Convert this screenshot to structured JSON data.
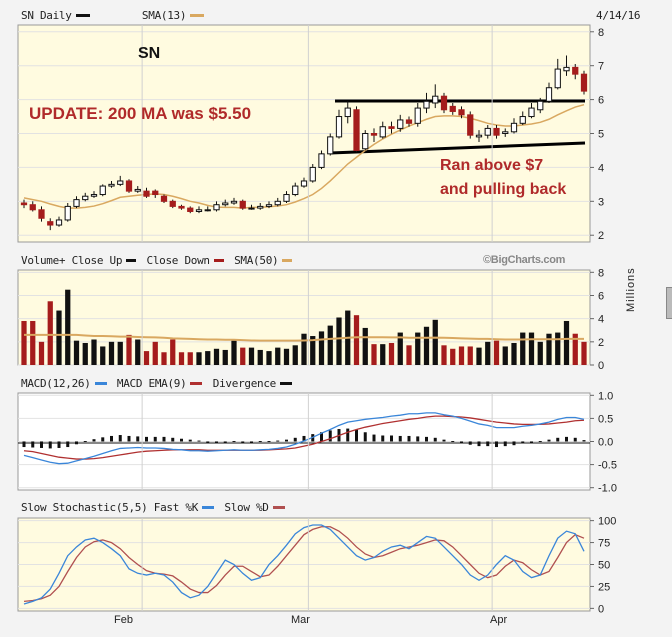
{
  "header": {
    "symbol_period": "SN Daily",
    "indicator": "SMA(13)",
    "date": "4/14/16"
  },
  "annotations": {
    "ticker": "SN",
    "update": "UPDATE: 200 MA was $5.50",
    "note_line1": "Ran above $7",
    "note_line2": "and pulling back"
  },
  "watermark": "©BigCharts.com",
  "colors": {
    "up": "#111111",
    "down": "#a51c1c",
    "sma": "#d9a860",
    "macd": "#3a86d9",
    "signal": "#b03030",
    "fast": "#3a86d9",
    "slow": "#b05050",
    "annotation": "#b02a2a"
  },
  "x_axis": {
    "labels": [
      "Feb",
      "Mar",
      "Apr"
    ]
  },
  "chart_data": [
    {
      "type": "candlestick",
      "title": "SN Daily",
      "series_name": "SMA(13)",
      "ylim": [
        2,
        8
      ],
      "yticks": [
        2,
        3,
        4,
        5,
        6,
        7,
        8
      ],
      "x": [
        "Jan 12",
        "Jan 13",
        "Jan 14",
        "Jan 15",
        "Jan 19",
        "Jan 20",
        "Jan 21",
        "Jan 22",
        "Jan 25",
        "Jan 26",
        "Jan 27",
        "Jan 28",
        "Jan 29",
        "Feb 1",
        "Feb 2",
        "Feb 3",
        "Feb 4",
        "Feb 5",
        "Feb 8",
        "Feb 9",
        "Feb 10",
        "Feb 11",
        "Feb 12",
        "Feb 16",
        "Feb 17",
        "Feb 18",
        "Feb 19",
        "Feb 22",
        "Feb 23",
        "Feb 24",
        "Feb 25",
        "Feb 26",
        "Feb 29",
        "Mar 1",
        "Mar 2",
        "Mar 3",
        "Mar 4",
        "Mar 7",
        "Mar 8",
        "Mar 9",
        "Mar 10",
        "Mar 11",
        "Mar 14",
        "Mar 15",
        "Mar 16",
        "Mar 17",
        "Mar 18",
        "Mar 21",
        "Mar 22",
        "Mar 23",
        "Mar 24",
        "Mar 28",
        "Mar 29",
        "Mar 30",
        "Mar 31",
        "Apr 1",
        "Apr 4",
        "Apr 5",
        "Apr 6",
        "Apr 7",
        "Apr 8",
        "Apr 11",
        "Apr 12",
        "Apr 13",
        "Apr 14"
      ],
      "open": [
        2.95,
        2.9,
        2.75,
        2.4,
        2.3,
        2.45,
        2.85,
        3.05,
        3.15,
        3.2,
        3.45,
        3.5,
        3.6,
        3.3,
        3.3,
        3.3,
        3.15,
        3.0,
        2.85,
        2.8,
        2.7,
        2.75,
        2.75,
        2.9,
        2.95,
        3.0,
        2.8,
        2.8,
        2.85,
        2.9,
        3.0,
        3.2,
        3.45,
        3.6,
        4.0,
        4.4,
        4.9,
        5.5,
        5.7,
        4.55,
        5.0,
        4.9,
        5.2,
        5.15,
        5.4,
        5.3,
        5.75,
        5.9,
        6.1,
        5.8,
        5.7,
        5.55,
        4.9,
        4.95,
        5.15,
        5.0,
        5.05,
        5.3,
        5.5,
        5.7,
        5.95,
        6.35,
        6.85,
        6.95,
        6.75
      ],
      "close": [
        2.9,
        2.75,
        2.5,
        2.3,
        2.45,
        2.85,
        3.05,
        3.15,
        3.2,
        3.45,
        3.5,
        3.6,
        3.3,
        3.35,
        3.15,
        3.2,
        3.0,
        2.85,
        2.8,
        2.7,
        2.75,
        2.75,
        2.9,
        2.95,
        3.0,
        2.8,
        2.8,
        2.85,
        2.9,
        3.0,
        3.2,
        3.45,
        3.6,
        4.0,
        4.4,
        4.9,
        5.5,
        5.75,
        4.5,
        5.0,
        4.95,
        5.2,
        5.15,
        5.4,
        5.3,
        5.75,
        5.95,
        6.1,
        5.7,
        5.65,
        5.55,
        4.95,
        4.95,
        5.15,
        4.95,
        5.05,
        5.3,
        5.5,
        5.75,
        5.95,
        6.35,
        6.9,
        6.95,
        6.75,
        6.25
      ],
      "high": [
        3.05,
        3.0,
        2.85,
        2.5,
        2.55,
        2.95,
        3.15,
        3.25,
        3.3,
        3.5,
        3.6,
        3.75,
        3.65,
        3.45,
        3.4,
        3.35,
        3.2,
        3.05,
        2.9,
        2.85,
        2.85,
        2.85,
        3.0,
        3.05,
        3.1,
        3.05,
        2.9,
        2.95,
        3.0,
        3.1,
        3.3,
        3.55,
        3.7,
        4.1,
        4.5,
        5.0,
        5.7,
        5.95,
        5.8,
        5.1,
        5.15,
        5.35,
        5.35,
        5.55,
        5.5,
        5.9,
        6.2,
        6.45,
        6.2,
        5.9,
        5.8,
        5.65,
        5.1,
        5.25,
        5.25,
        5.15,
        5.45,
        5.65,
        5.9,
        6.05,
        6.5,
        7.2,
        7.3,
        7.05,
        6.85
      ],
      "low": [
        2.8,
        2.7,
        2.4,
        2.15,
        2.25,
        2.4,
        2.8,
        3.0,
        3.1,
        3.15,
        3.4,
        3.45,
        3.25,
        3.25,
        3.1,
        3.1,
        2.95,
        2.8,
        2.75,
        2.65,
        2.65,
        2.7,
        2.7,
        2.85,
        2.9,
        2.75,
        2.75,
        2.75,
        2.8,
        2.85,
        2.95,
        3.15,
        3.4,
        3.55,
        3.95,
        4.35,
        4.85,
        5.3,
        4.45,
        4.5,
        4.75,
        4.85,
        5.0,
        5.05,
        5.2,
        5.2,
        5.6,
        5.75,
        5.6,
        5.55,
        5.45,
        4.85,
        4.75,
        4.85,
        4.85,
        4.9,
        5.0,
        5.25,
        5.45,
        5.6,
        5.9,
        6.3,
        6.7,
        6.6,
        6.15
      ],
      "sma13": [
        3.1,
        3.05,
        3.0,
        2.92,
        2.85,
        2.8,
        2.8,
        2.82,
        2.86,
        2.93,
        3.02,
        3.12,
        3.15,
        3.18,
        3.2,
        3.22,
        3.2,
        3.15,
        3.08,
        3.0,
        2.95,
        2.88,
        2.83,
        2.82,
        2.82,
        2.8,
        2.82,
        2.82,
        2.84,
        2.86,
        2.9,
        2.98,
        3.08,
        3.2,
        3.38,
        3.6,
        3.85,
        4.1,
        4.3,
        4.5,
        4.68,
        4.84,
        4.98,
        5.1,
        5.22,
        5.32,
        5.42,
        5.5,
        5.52,
        5.52,
        5.5,
        5.45,
        5.38,
        5.3,
        5.25,
        5.22,
        5.22,
        5.25,
        5.28,
        5.33,
        5.42,
        5.55,
        5.67,
        5.78,
        5.85
      ]
    },
    {
      "type": "bar",
      "title": "Volume+",
      "ylabel": "Millions",
      "legend": [
        "Close Up",
        "Close Down",
        "SMA(50)"
      ],
      "ylim": [
        0,
        8
      ],
      "yticks": [
        0,
        2,
        4,
        6,
        8
      ],
      "values": [
        3.8,
        3.8,
        2.0,
        5.5,
        4.7,
        6.5,
        2.1,
        1.9,
        2.2,
        1.6,
        2.0,
        2.0,
        2.6,
        2.2,
        1.2,
        2.0,
        1.1,
        2.2,
        1.1,
        1.1,
        1.1,
        1.2,
        1.4,
        1.3,
        2.1,
        1.5,
        1.5,
        1.3,
        1.2,
        1.5,
        1.4,
        1.7,
        2.7,
        2.5,
        2.9,
        3.4,
        4.1,
        4.7,
        4.3,
        3.2,
        1.8,
        1.8,
        1.9,
        2.8,
        1.7,
        2.8,
        3.3,
        3.9,
        1.7,
        1.4,
        1.6,
        1.6,
        1.5,
        2.0,
        2.1,
        1.6,
        1.9,
        2.8,
        2.8,
        2.0,
        2.7,
        2.8,
        3.8,
        2.7,
        2.0
      ],
      "sma50": [
        2.6,
        2.6,
        2.6,
        2.6,
        2.6,
        2.6,
        2.6,
        2.55,
        2.5,
        2.5,
        2.48,
        2.45,
        2.45,
        2.42,
        2.4,
        2.38,
        2.35,
        2.3,
        2.28,
        2.25,
        2.22,
        2.2,
        2.2,
        2.18,
        2.18,
        2.15,
        2.12,
        2.1,
        2.1,
        2.1,
        2.1,
        2.1,
        2.12,
        2.15,
        2.2,
        2.25,
        2.3,
        2.35,
        2.4,
        2.4,
        2.4,
        2.4,
        2.38,
        2.38,
        2.35,
        2.35,
        2.35,
        2.36,
        2.35,
        2.33,
        2.3,
        2.28,
        2.25,
        2.25,
        2.22,
        2.2,
        2.2,
        2.2,
        2.22,
        2.22,
        2.22,
        2.22,
        2.25,
        2.25,
        2.25
      ]
    },
    {
      "type": "line",
      "title": "MACD(12,26)",
      "legend": [
        "MACD EMA(9)",
        "Divergence"
      ],
      "ylim": [
        -1.0,
        1.0
      ],
      "yticks": [
        -1.0,
        -0.5,
        0.0,
        0.5,
        1.0
      ],
      "macd": [
        -0.3,
        -0.35,
        -0.4,
        -0.45,
        -0.48,
        -0.47,
        -0.42,
        -0.37,
        -0.32,
        -0.26,
        -0.2,
        -0.15,
        -0.14,
        -0.13,
        -0.14,
        -0.14,
        -0.15,
        -0.17,
        -0.18,
        -0.2,
        -0.2,
        -0.21,
        -0.2,
        -0.19,
        -0.18,
        -0.19,
        -0.19,
        -0.18,
        -0.17,
        -0.15,
        -0.12,
        -0.06,
        0.01,
        0.09,
        0.18,
        0.26,
        0.35,
        0.42,
        0.45,
        0.48,
        0.5,
        0.52,
        0.55,
        0.57,
        0.6,
        0.6,
        0.62,
        0.62,
        0.58,
        0.55,
        0.5,
        0.44,
        0.38,
        0.35,
        0.3,
        0.3,
        0.3,
        0.33,
        0.35,
        0.38,
        0.42,
        0.48,
        0.52,
        0.52,
        0.48
      ],
      "signal": [
        -0.2,
        -0.22,
        -0.26,
        -0.3,
        -0.34,
        -0.36,
        -0.38,
        -0.38,
        -0.37,
        -0.35,
        -0.32,
        -0.29,
        -0.26,
        -0.23,
        -0.21,
        -0.2,
        -0.19,
        -0.18,
        -0.18,
        -0.18,
        -0.18,
        -0.19,
        -0.19,
        -0.19,
        -0.19,
        -0.19,
        -0.19,
        -0.19,
        -0.18,
        -0.17,
        -0.16,
        -0.14,
        -0.1,
        -0.06,
        0.0,
        0.06,
        0.13,
        0.2,
        0.26,
        0.31,
        0.35,
        0.39,
        0.42,
        0.45,
        0.48,
        0.5,
        0.53,
        0.55,
        0.55,
        0.54,
        0.53,
        0.51,
        0.48,
        0.45,
        0.42,
        0.4,
        0.38,
        0.37,
        0.37,
        0.37,
        0.38,
        0.4,
        0.42,
        0.45,
        0.46
      ],
      "divergence": [
        -0.12,
        -0.13,
        -0.14,
        -0.15,
        -0.14,
        -0.12,
        -0.06,
        0.01,
        0.05,
        0.09,
        0.12,
        0.14,
        0.12,
        0.11,
        0.1,
        0.1,
        0.1,
        0.08,
        0.06,
        0.04,
        0.02,
        0.0,
        0.0,
        0.0,
        0.01,
        0.0,
        0.0,
        0.01,
        0.01,
        0.02,
        0.04,
        0.08,
        0.12,
        0.16,
        0.2,
        0.24,
        0.27,
        0.28,
        0.26,
        0.2,
        0.15,
        0.13,
        0.13,
        0.12,
        0.12,
        0.11,
        0.1,
        0.08,
        0.04,
        0.01,
        -0.03,
        -0.07,
        -0.1,
        -0.1,
        -0.12,
        -0.1,
        -0.08,
        -0.04,
        -0.02,
        0.01,
        0.04,
        0.08,
        0.1,
        0.08,
        0.03
      ]
    },
    {
      "type": "line",
      "title": "Slow Stochastic(5,5)",
      "legend": [
        "Fast %K",
        "Slow %D"
      ],
      "ylim": [
        0,
        100
      ],
      "yticks": [
        0,
        25,
        50,
        75,
        100
      ],
      "fast": [
        5,
        8,
        12,
        22,
        40,
        60,
        70,
        78,
        80,
        75,
        68,
        60,
        45,
        40,
        38,
        40,
        38,
        30,
        18,
        12,
        15,
        25,
        40,
        55,
        50,
        40,
        32,
        35,
        50,
        60,
        72,
        85,
        92,
        95,
        95,
        90,
        80,
        70,
        60,
        55,
        58,
        65,
        70,
        72,
        68,
        75,
        82,
        80,
        70,
        60,
        50,
        38,
        32,
        38,
        50,
        60,
        55,
        42,
        35,
        38,
        60,
        80,
        88,
        85,
        65
      ],
      "slow": [
        8,
        9,
        11,
        15,
        25,
        42,
        58,
        70,
        76,
        78,
        75,
        68,
        58,
        50,
        43,
        40,
        39,
        37,
        30,
        22,
        18,
        18,
        26,
        38,
        48,
        48,
        42,
        36,
        38,
        48,
        60,
        72,
        84,
        90,
        93,
        93,
        88,
        80,
        70,
        62,
        58,
        60,
        64,
        68,
        70,
        72,
        75,
        78,
        77,
        70,
        60,
        50,
        40,
        35,
        38,
        48,
        55,
        52,
        44,
        38,
        42,
        58,
        75,
        84,
        80
      ]
    }
  ]
}
